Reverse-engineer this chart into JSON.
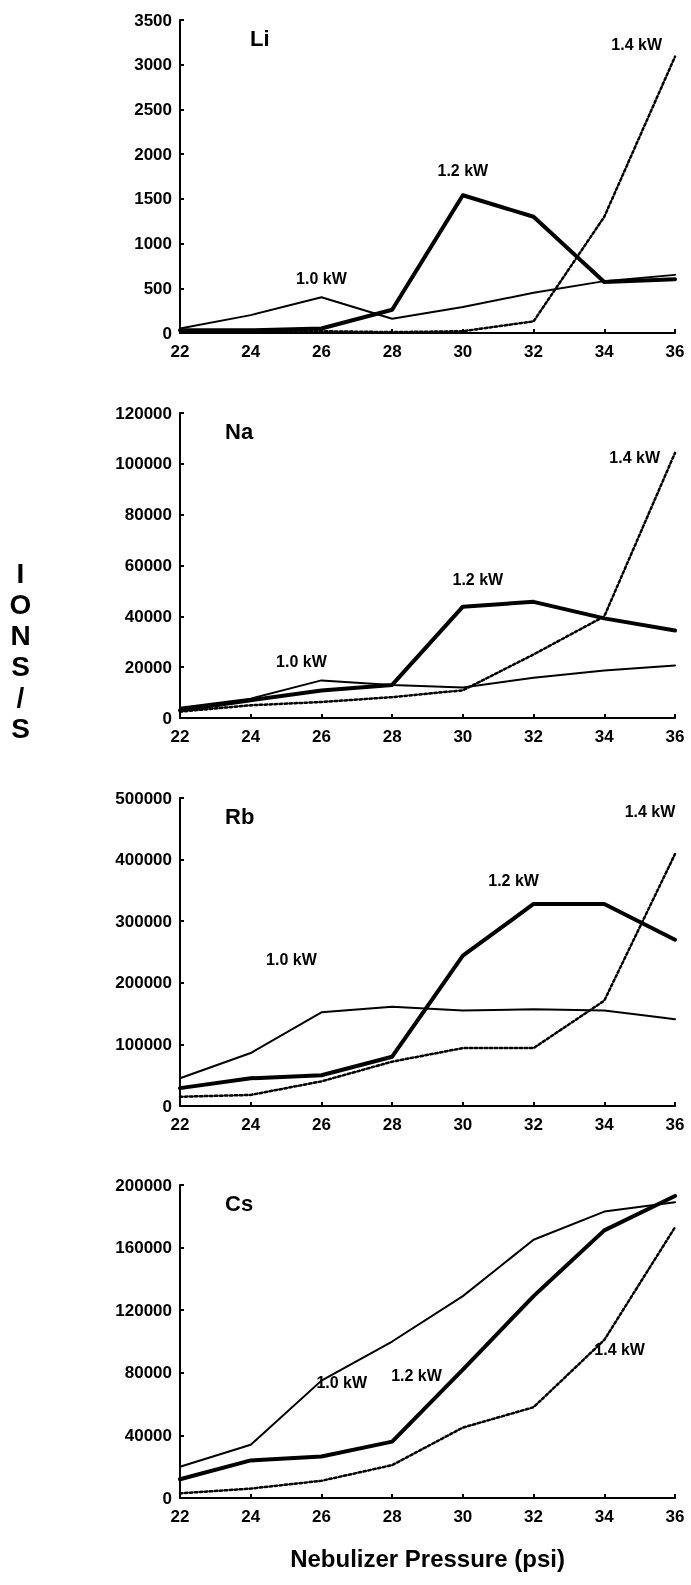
{
  "chart_data": [
    {
      "type": "line",
      "title": "Li",
      "x": [
        22,
        24,
        26,
        28,
        30,
        32,
        34,
        36
      ],
      "xlim": [
        22,
        36
      ],
      "xticks": [
        22,
        24,
        26,
        28,
        30,
        32,
        34,
        36
      ],
      "ylim": [
        0,
        3500
      ],
      "yticks": [
        0,
        500,
        1000,
        1500,
        2000,
        2500,
        3000,
        3500
      ],
      "grid": false,
      "legend": false,
      "marker": "none",
      "series": [
        {
          "name": "1.0 kW",
          "color": "#000000",
          "line_style": "solid",
          "values": [
            50,
            200,
            400,
            160,
            290,
            450,
            580,
            650
          ]
        },
        {
          "name": "1.2 kW",
          "color": "#000000",
          "line_style": "solid",
          "values": [
            30,
            30,
            50,
            260,
            1540,
            1300,
            570,
            600
          ]
        },
        {
          "name": "1.4 kW",
          "color": "#000000",
          "line_style": "dotted",
          "values": [
            20,
            10,
            20,
            10,
            20,
            130,
            1300,
            3090
          ]
        }
      ]
    },
    {
      "type": "line",
      "title": "Na",
      "ylabel": "IONS/S",
      "x": [
        22,
        24,
        26,
        28,
        30,
        32,
        34,
        36
      ],
      "xlim": [
        22,
        36
      ],
      "xticks": [
        22,
        24,
        26,
        28,
        30,
        32,
        34,
        36
      ],
      "ylim": [
        0,
        120000
      ],
      "yticks": [
        0,
        20000,
        40000,
        60000,
        80000,
        100000,
        120000
      ],
      "grid": false,
      "legend": false,
      "marker": "none",
      "series": [
        {
          "name": "1.0 kW",
          "color": "#000000",
          "line_style": "solid",
          "values": [
            4000,
            7600,
            14800,
            13000,
            12000,
            15800,
            18700,
            20700
          ]
        },
        {
          "name": "1.2 kW",
          "color": "#000000",
          "line_style": "solid",
          "values": [
            3000,
            7000,
            10800,
            13000,
            43800,
            45700,
            39200,
            34400
          ]
        },
        {
          "name": "1.4 kW",
          "color": "#000000",
          "line_style": "dotted",
          "values": [
            2500,
            5000,
            6300,
            8200,
            10900,
            25000,
            40000,
            104300
          ]
        }
      ]
    },
    {
      "type": "line",
      "title": "Rb",
      "x": [
        22,
        24,
        26,
        28,
        30,
        32,
        34,
        36
      ],
      "xlim": [
        22,
        36
      ],
      "xticks": [
        22,
        24,
        26,
        28,
        30,
        32,
        34,
        36
      ],
      "ylim": [
        0,
        500000
      ],
      "yticks": [
        0,
        100000,
        200000,
        300000,
        400000,
        500000
      ],
      "grid": false,
      "legend": false,
      "marker": "none",
      "series": [
        {
          "name": "1.0 kW",
          "color": "#000000",
          "line_style": "solid",
          "values": [
            45000,
            86000,
            152000,
            161000,
            155000,
            157000,
            155000,
            141000
          ]
        },
        {
          "name": "1.2 kW",
          "color": "#000000",
          "line_style": "solid",
          "values": [
            29000,
            45000,
            50000,
            80000,
            244000,
            328000,
            328000,
            270000
          ]
        },
        {
          "name": "1.4 kW",
          "color": "#000000",
          "line_style": "dotted",
          "values": [
            15000,
            18000,
            40000,
            72000,
            94000,
            94000,
            171000,
            409000
          ]
        }
      ]
    },
    {
      "type": "line",
      "title": "Cs",
      "xlabel": "Nebulizer Pressure (psi)",
      "x": [
        22,
        24,
        26,
        28,
        30,
        32,
        34,
        36
      ],
      "xlim": [
        22,
        36
      ],
      "xticks": [
        22,
        24,
        26,
        28,
        30,
        32,
        34,
        36
      ],
      "ylim": [
        0,
        200000
      ],
      "yticks": [
        0,
        40000,
        80000,
        120000,
        160000,
        200000
      ],
      "grid": false,
      "legend": false,
      "marker": "none",
      "series": [
        {
          "name": "1.0 kW",
          "color": "#000000",
          "line_style": "solid",
          "values": [
            20000,
            34000,
            75000,
            100000,
            129000,
            165000,
            183000,
            189000
          ]
        },
        {
          "name": "1.2 kW",
          "color": "#000000",
          "line_style": "solid",
          "values": [
            12000,
            24000,
            26500,
            36000,
            82000,
            129000,
            171000,
            193000
          ]
        },
        {
          "name": "1.4 kW",
          "color": "#000000",
          "line_style": "dotted",
          "values": [
            3000,
            6000,
            11000,
            21000,
            45000,
            58000,
            101000,
            173000
          ]
        }
      ]
    }
  ]
}
